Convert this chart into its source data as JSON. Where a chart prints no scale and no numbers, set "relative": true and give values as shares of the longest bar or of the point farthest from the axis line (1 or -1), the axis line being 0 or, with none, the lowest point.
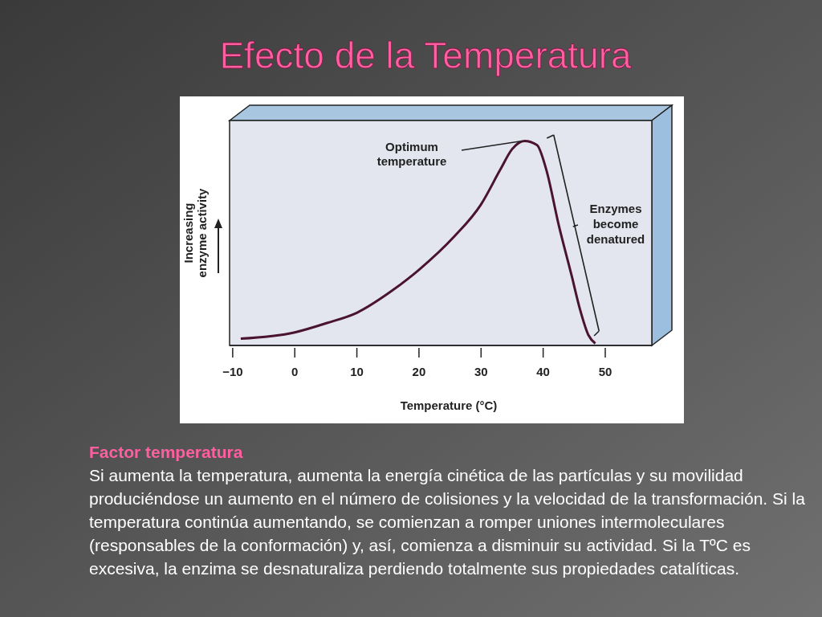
{
  "chart_data": {
    "type": "line",
    "title": "Efecto de la Temperatura",
    "xlabel": "Temperature (°C)",
    "ylabel": "Increasing enzyme activity",
    "relative": true,
    "x": [
      -8.7,
      0,
      5.2,
      10,
      15.3,
      20,
      25.6,
      30,
      33.1,
      35,
      37,
      39,
      40.5,
      42.5,
      44.6,
      45.9,
      47.3,
      48.4
    ],
    "series": [
      {
        "color": "#4a1430",
        "values": [
          0.033,
          0.064,
          0.11,
          0.16,
          0.26,
          0.37,
          0.53,
          0.69,
          0.86,
          0.96,
          1,
          0.98,
          0.86,
          0.59,
          0.34,
          0.18,
          0.05,
          0.01
        ]
      }
    ],
    "xlim": [
      -10.5,
      57.5
    ],
    "xticks": [
      {
        "value": -10,
        "label": "−10"
      },
      0,
      10,
      20,
      30,
      40,
      50
    ],
    "grid": false,
    "marker": "none",
    "line_style": "solid",
    "annotations": [
      {
        "text": "Optimum temperature",
        "x": 37,
        "y": 1
      },
      "Enzymes become denatured",
      "Factor temperatura",
      "Si aumenta la temperatura, aumenta la energía cinética de las partículas y su movilidad produciéndose un aumento en el número de colisiones y la velocidad de la transformación. Si la temperatura continúa aumentando, se comienzan a romper uniones intermoleculares (responsables de la conformación) y, así, comienza a disminuir su actividad. Si la TºC es excesiva, la enzima se desnaturaliza perdiendo totalmente sus propiedades catalíticas."
    ]
  }
}
